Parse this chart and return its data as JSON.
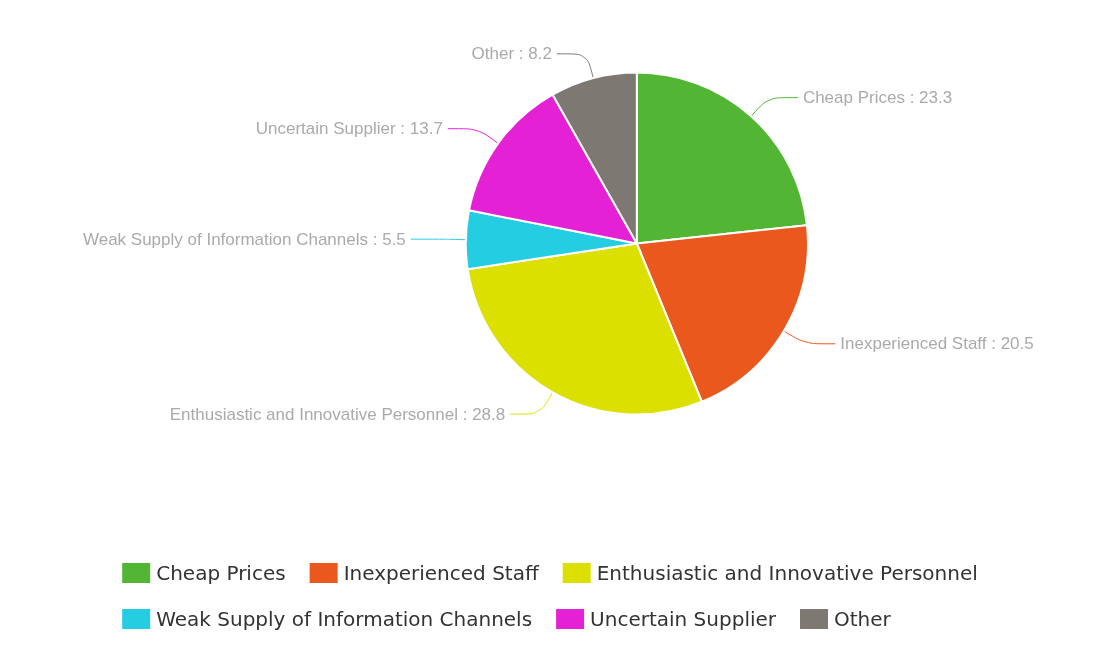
{
  "chart_data": {
    "type": "pie",
    "categories": [
      "Cheap Prices",
      "Inexperienced Staff",
      "Enthusiastic and Innovative Personnel",
      "Weak Supply of Information Channels",
      "Uncertain Supplier",
      "Other"
    ],
    "values": [
      23.3,
      20.5,
      28.8,
      5.5,
      13.7,
      8.2
    ],
    "value_labels": [
      "Cheap Prices : 23.3",
      "Inexperienced Staff : 20.5",
      "Enthusiastic and Innovative Personnel : 28.8",
      "Weak Supply of Information Channels : 5.5",
      "Uncertain Supplier : 13.7",
      "Other : 8.2"
    ],
    "colors": [
      "#52b534",
      "#ea581d",
      "#dce000",
      "#25cde3",
      "#e521d6",
      "#7e7873"
    ],
    "legend": "bottom"
  }
}
